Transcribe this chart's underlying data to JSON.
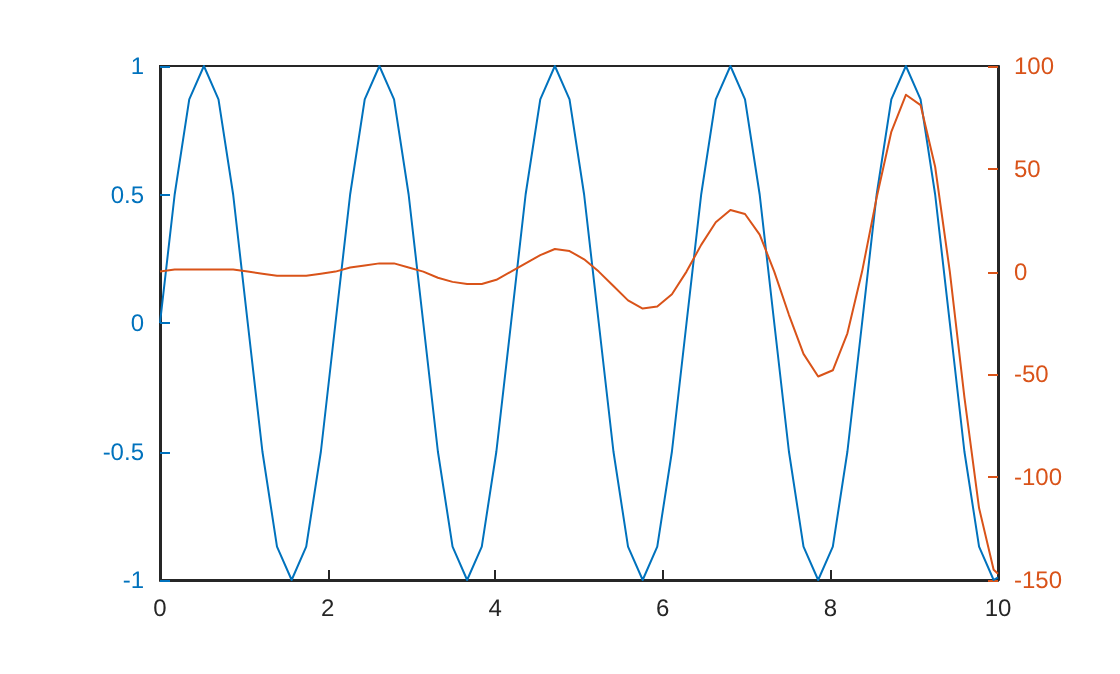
{
  "chart_data": {
    "type": "line",
    "xlim": [
      0,
      10
    ],
    "xticks": [
      0,
      2,
      4,
      6,
      8,
      10
    ],
    "ylim": [
      -1,
      1
    ],
    "yticks": [
      -1,
      -0.5,
      0,
      0.5,
      1
    ],
    "y2lim": [
      -150,
      100
    ],
    "y2ticks": [
      -150,
      -100,
      -50,
      0,
      50,
      100
    ],
    "grid": false,
    "marker": "none",
    "line_style": "solid",
    "series": [
      {
        "color": "#0072bd",
        "axis": "y",
        "x": [
          0,
          0.175,
          0.349,
          0.524,
          0.698,
          0.873,
          1.047,
          1.222,
          1.396,
          1.571,
          1.745,
          1.92,
          2.094,
          2.269,
          2.443,
          2.618,
          2.793,
          2.967,
          3.142,
          3.316,
          3.491,
          3.665,
          3.84,
          4.014,
          4.189,
          4.363,
          4.538,
          4.712,
          4.887,
          5.061,
          5.236,
          5.411,
          5.585,
          5.76,
          5.934,
          6.109,
          6.283,
          6.458,
          6.632,
          6.807,
          6.981,
          7.156,
          7.33,
          7.505,
          7.679,
          7.854,
          8.029,
          8.203,
          8.378,
          8.552,
          8.727,
          8.901,
          9.076,
          9.25,
          9.425,
          9.599,
          9.774,
          9.948,
          10
        ],
        "values": [
          0,
          0.5,
          0.87,
          1,
          0.87,
          0.5,
          0,
          -0.5,
          -0.87,
          -1,
          -0.87,
          -0.5,
          0,
          0.5,
          0.87,
          1,
          0.87,
          0.5,
          0,
          -0.5,
          -0.87,
          -1,
          -0.87,
          -0.5,
          0,
          0.5,
          0.87,
          1,
          0.87,
          0.5,
          0,
          -0.5,
          -0.87,
          -1,
          -0.87,
          -0.5,
          0,
          0.5,
          0.87,
          1,
          0.87,
          0.5,
          0,
          -0.5,
          -0.87,
          -1,
          -0.87,
          -0.5,
          0,
          0.5,
          0.87,
          1,
          0.87,
          0.5,
          0,
          -0.5,
          -0.87,
          -1,
          -0.99
        ]
      },
      {
        "color": "#d95319",
        "axis": "y2",
        "x": [
          0,
          0.175,
          0.349,
          0.524,
          0.698,
          0.873,
          1.047,
          1.222,
          1.396,
          1.571,
          1.745,
          1.92,
          2.094,
          2.269,
          2.443,
          2.618,
          2.793,
          2.967,
          3.142,
          3.316,
          3.491,
          3.665,
          3.84,
          4.014,
          4.189,
          4.363,
          4.538,
          4.712,
          4.887,
          5.061,
          5.236,
          5.411,
          5.585,
          5.76,
          5.934,
          6.109,
          6.283,
          6.458,
          6.632,
          6.807,
          6.981,
          7.156,
          7.33,
          7.505,
          7.679,
          7.854,
          8.029,
          8.203,
          8.378,
          8.552,
          8.727,
          8.901,
          9.076,
          9.25,
          9.425,
          9.599,
          9.774,
          9.948,
          10
        ],
        "values": [
          0,
          1,
          1,
          1,
          1,
          1,
          0,
          -1,
          -2,
          -2,
          -2,
          -1,
          0,
          2,
          3,
          4,
          4,
          2,
          0,
          -3,
          -5,
          -6,
          -6,
          -4,
          0,
          4,
          8,
          11,
          10,
          6,
          0,
          -7,
          -14,
          -18,
          -17,
          -11,
          0,
          13,
          24,
          30,
          28,
          18,
          0,
          -21,
          -40,
          -51,
          -48,
          -30,
          0,
          36,
          68,
          86,
          81,
          51,
          0,
          -61,
          -115,
          -145,
          -147
        ]
      }
    ]
  }
}
